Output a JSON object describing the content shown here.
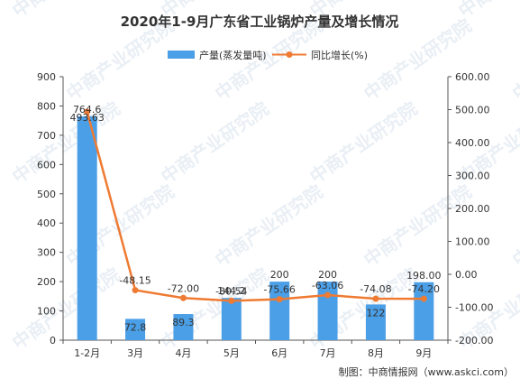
{
  "chart_data": {
    "type": "bar",
    "title": "2020年1-9月广东省工业锅炉产量及增长情况",
    "categories": [
      "1-2月",
      "3月",
      "4月",
      "5月",
      "6月",
      "7月",
      "8月",
      "9月"
    ],
    "series": [
      {
        "name": "产量(蒸发量吨)",
        "kind": "bar",
        "axis": "left",
        "values": [
          764.6,
          72.8,
          89.3,
          144.2,
          200,
          200,
          122,
          198.0
        ],
        "labels": [
          "764.6",
          "72.8",
          "89.3",
          "144.2",
          "200",
          "200",
          "122",
          "198.00"
        ]
      },
      {
        "name": "同比增长(%)",
        "kind": "line",
        "axis": "right",
        "values": [
          493.63,
          -48.15,
          -72.0,
          -80.54,
          -75.66,
          -63.06,
          -74.08,
          -74.2
        ],
        "labels": [
          "493.63",
          "-48.15",
          "-72.00",
          "-80.54",
          "-75.66",
          "-63.06",
          "-74.08",
          "-74.20"
        ]
      }
    ],
    "y_left": {
      "range": [
        0,
        900
      ],
      "ticks": [
        0,
        100,
        200,
        300,
        400,
        500,
        600,
        700,
        800,
        900
      ],
      "tick_labels": [
        "0",
        "100",
        "200",
        "300",
        "400",
        "500",
        "600",
        "700",
        "800",
        "900"
      ]
    },
    "y_right": {
      "range": [
        -200,
        600
      ],
      "ticks": [
        -200,
        -100,
        0,
        100,
        200,
        300,
        400,
        500,
        600
      ],
      "tick_labels": [
        "-200.00",
        "-100.00",
        "0.00",
        "100.00",
        "200.00",
        "300.00",
        "400.00",
        "500.00",
        "600.00"
      ]
    },
    "grid": false,
    "legend_position": "top-center",
    "colors": {
      "bar": "#4b9fe6",
      "line": "#ef7a32",
      "text": "#333333",
      "axis": "#555555"
    }
  },
  "source_note": "制图：中商情报网（www.askci.com）",
  "watermark_text": "中商产业研究院"
}
